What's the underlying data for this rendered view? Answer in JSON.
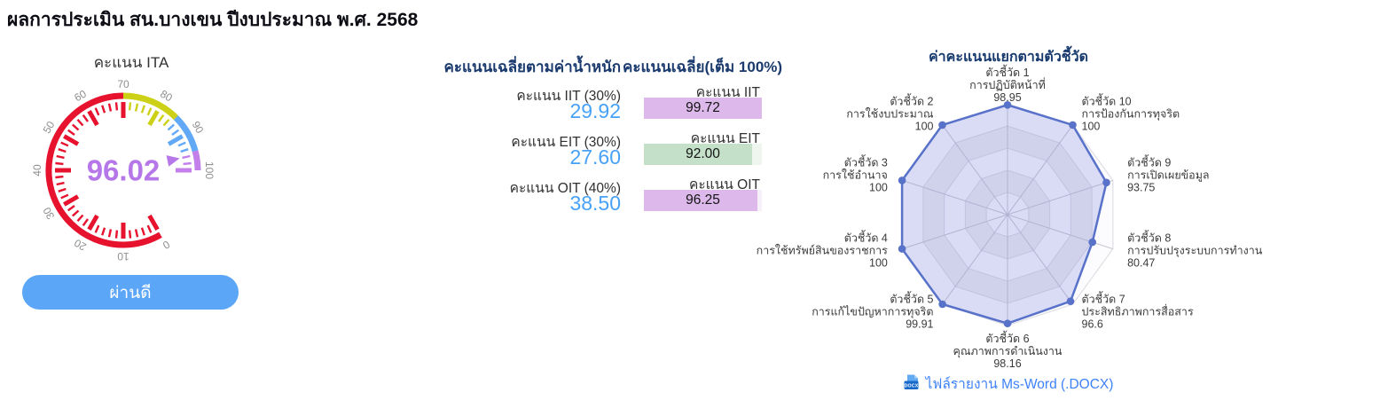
{
  "page_title": "ผลการประเมิน สน.บางเขน ปีงบประมาณ พ.ศ. 2568",
  "gauge_panel": {
    "grade_label": "ผ่านดี"
  },
  "weighted_scores": {
    "header": "คะแนนเฉลี่ยตามค่าน้ำหนัก",
    "rows": [
      {
        "label": "คะแนน IIT (30%)",
        "value": "29.92"
      },
      {
        "label": "คะแนน EIT (30%)",
        "value": "27.60"
      },
      {
        "label": "คะแนน OIT (40%)",
        "value": "38.50"
      }
    ]
  },
  "average_scores": {
    "header": "คะแนนเฉลี่ย(เต็ม 100%)",
    "rows": [
      {
        "label": "คะแนน IIT",
        "value": 99.72,
        "display": "99.72",
        "fill_color": "#dcb9ea",
        "track_color": "#f7effa"
      },
      {
        "label": "คะแนน EIT",
        "value": 92,
        "display": "92.00",
        "fill_color": "#c5e0c9",
        "track_color": "#eff6ef"
      },
      {
        "label": "คะแนน OIT",
        "value": 96.25,
        "display": "96.25",
        "fill_color": "#dcb9ea",
        "track_color": "#f7effa"
      }
    ]
  },
  "report_link": {
    "label": "ไฟล์รายงาน Ms-Word (.DOCX)",
    "icon": "docx-file-icon",
    "icon_text": "DOCX"
  },
  "chart_data": [
    {
      "type": "gauge",
      "title": "คะแนน ITA",
      "value": 96.02,
      "display": "96.02",
      "min": 0,
      "max": 100,
      "start_angle": 300,
      "end_angle": 0,
      "major_tick_interval": 10,
      "minor_tick_interval": 2,
      "segments": [
        {
          "from": 0,
          "to": 70,
          "color": "#e6122e"
        },
        {
          "from": 70,
          "to": 85,
          "color": "#ccd118"
        },
        {
          "from": 85,
          "to": 95,
          "color": "#61a9f6"
        },
        {
          "from": 95,
          "to": 100,
          "color": "#c480ea"
        }
      ],
      "value_color": "#b678e8",
      "tick_label_color": "#8f8f8f"
    },
    {
      "type": "radar",
      "title": "ค่าคะแนนแยกตามตัวชี้วัด",
      "max": 100,
      "levels": 5,
      "indicators": [
        {
          "label": "ตัวชี้วัด 1",
          "name": "การปฏิบัติหน้าที่",
          "value": 98.95
        },
        {
          "label": "ตัวชี้วัด 2",
          "name": "การใช้งบประมาณ",
          "value": 100
        },
        {
          "label": "ตัวชี้วัด 3",
          "name": "การใช้อำนาจ",
          "value": 100
        },
        {
          "label": "ตัวชี้วัด 4",
          "name": "การใช้ทรัพย์สินของราชการ",
          "value": 100
        },
        {
          "label": "ตัวชี้วัด 5",
          "name": "การแก้ไขปัญหาการทุจริต",
          "value": 99.91
        },
        {
          "label": "ตัวชี้วัด 6",
          "name": "คุณภาพการดำเนินงาน",
          "value": 98.16
        },
        {
          "label": "ตัวชี้วัด 7",
          "name": "ประสิทธิภาพการสื่อสาร",
          "value": 96.6
        },
        {
          "label": "ตัวชี้วัด 8",
          "name": "การปรับปรุงระบบการทำงาน",
          "value": 80.47
        },
        {
          "label": "ตัวชี้วัด 9",
          "name": "การเปิดเผยข้อมูล",
          "value": 93.75
        },
        {
          "label": "ตัวชี้วัด 10",
          "name": "การป้องกันการทุจริต",
          "value": 100
        }
      ],
      "line_color": "#5872ca",
      "fill_color": "rgba(112,122,220,0.24)",
      "grid_line_color": "#d9d9e0",
      "axis_line_color": "#c6c6cf",
      "label_color": "#3a3a3a"
    }
  ]
}
